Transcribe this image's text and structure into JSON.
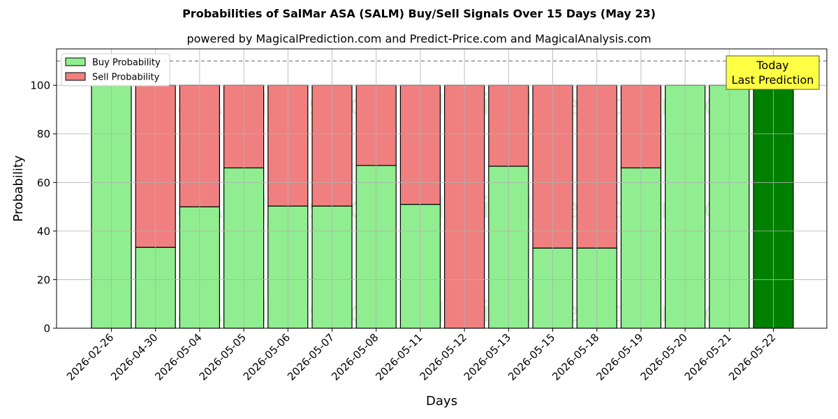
{
  "chart_data": {
    "type": "bar",
    "title": "Probabilities of SalMar ASA (SALM) Buy/Sell Signals Over 15 Days (May 23)",
    "subtitle": "powered by MagicalPrediction.com and Predict-Price.com and MagicalAnalysis.com",
    "xlabel": "Days",
    "ylabel": "Probability",
    "ylim": [
      0,
      115
    ],
    "yticks": [
      0,
      20,
      40,
      60,
      80,
      100
    ],
    "stacked": true,
    "grid": true,
    "legend_placement": "top-left",
    "reference_line": 110,
    "categories": [
      "2026-02-26",
      "2026-04-30",
      "2026-05-04",
      "2026-05-05",
      "2026-05-06",
      "2026-05-07",
      "2026-05-08",
      "2026-05-11",
      "2026-05-12",
      "2026-05-13",
      "2026-05-15",
      "2026-05-18",
      "2026-05-19",
      "2026-05-20",
      "2026-05-21",
      "2026-05-22"
    ],
    "series": [
      {
        "name": "Buy Probability",
        "color": "#90ee90",
        "values": [
          100,
          33.3,
          50,
          66,
          50.3,
          50.3,
          67,
          51,
          0,
          66.7,
          33,
          33,
          66,
          100,
          100,
          100
        ]
      },
      {
        "name": "Sell Probability",
        "color": "#f08080",
        "values": [
          0,
          66.7,
          50,
          34,
          49.7,
          49.7,
          33,
          49,
          100,
          33.3,
          67,
          67,
          34,
          0,
          0,
          0
        ]
      }
    ],
    "highlight_color": "#008000",
    "highlight_index": 15,
    "annotation": {
      "lines": [
        "Today",
        "Last Prediction"
      ],
      "bg_color": "#ffff44"
    },
    "watermark": {
      "left": "MagicalAnalysis.com",
      "right": "MagicalPrediction.com"
    }
  }
}
